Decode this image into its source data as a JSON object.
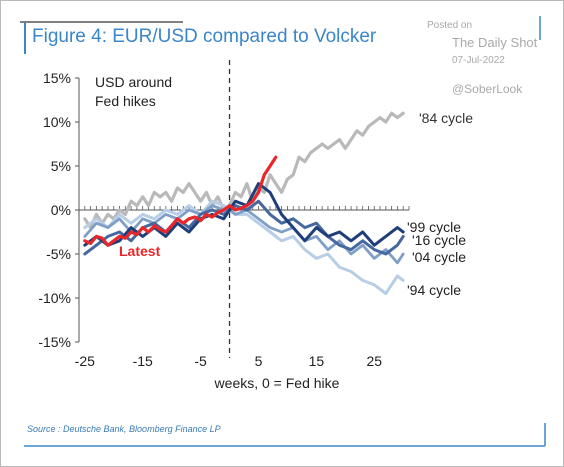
{
  "figure_title": "Figure 4: EUR/USD compared to Volcker",
  "watermark": {
    "posted_on": "Posted on",
    "site": "The Daily Shot",
    "date": "07-Jul-2022",
    "handle": "@SoberLook"
  },
  "source": "Source : Deutsche Bank, Bloomberg Finance LP",
  "colors": {
    "title": "#3a86c8",
    "accent_line": "#3a86c8",
    "84_cycle": "#b9b9b9",
    "99_cycle": "#1f3f7a",
    "16_cycle": "#46689e",
    "04_cycle": "#7f9fc8",
    "94_cycle": "#b8cde6",
    "latest": "#e8272a"
  },
  "chart_data": {
    "type": "line",
    "xlabel": "weeks, 0 = Fed hike",
    "ylabel": "",
    "xlim": [
      -26,
      31
    ],
    "ylim": [
      -15,
      15
    ],
    "x_ticks": [
      -25,
      -15,
      -5,
      5,
      15,
      25
    ],
    "y_ticks": [
      -15,
      -10,
      -5,
      0,
      5,
      10,
      15
    ],
    "y_tick_labels": [
      "-15%",
      "-10%",
      "-5%",
      "0%",
      "5%",
      "10%",
      "15%"
    ],
    "annotation": "USD around Fed hikes",
    "vline_x": 0,
    "legend": "inline labels",
    "grid": false,
    "series": [
      {
        "name": "'84 cycle",
        "color_key": "84_cycle",
        "x": [
          -25,
          -24,
          -23,
          -22,
          -21,
          -20,
          -19,
          -18,
          -17,
          -16,
          -15,
          -14,
          -13,
          -12,
          -11,
          -10,
          -9,
          -8,
          -7,
          -6,
          -5,
          -4,
          -3,
          -2,
          -1,
          0,
          1,
          2,
          3,
          4,
          5,
          6,
          7,
          8,
          9,
          10,
          11,
          12,
          13,
          14,
          15,
          16,
          17,
          18,
          19,
          20,
          21,
          22,
          23,
          24,
          25,
          26,
          27,
          28,
          29,
          30
        ],
        "y": [
          -1,
          -2,
          -0.5,
          -1.5,
          -0.5,
          -1,
          0,
          -0.5,
          1,
          0.5,
          1.5,
          0.5,
          2,
          1.5,
          2,
          1,
          2.5,
          2,
          3,
          2,
          1,
          2,
          0.5,
          1.5,
          0,
          0.5,
          2,
          1.5,
          3,
          1,
          2.5,
          2,
          4,
          3,
          2,
          3.5,
          4,
          6,
          5.5,
          6.5,
          7,
          7.5,
          7,
          7.5,
          8,
          7,
          8,
          9,
          8.5,
          9.5,
          10,
          10.5,
          10,
          11,
          10.5,
          11
        ]
      },
      {
        "name": "'99 cycle",
        "color_key": "99_cycle",
        "x": [
          -25,
          -23,
          -21,
          -19,
          -17,
          -15,
          -13,
          -11,
          -9,
          -7,
          -5,
          -3,
          -1,
          0,
          1,
          3,
          5,
          7,
          9,
          11,
          13,
          15,
          17,
          19,
          21,
          23,
          25,
          27,
          29,
          30
        ],
        "y": [
          -4,
          -3,
          -4,
          -3.5,
          -2,
          -3,
          -2,
          -3,
          -1.5,
          -2.5,
          -1,
          -0.5,
          -1,
          0,
          1,
          0.5,
          3,
          2,
          -0.5,
          -2,
          -3.5,
          -2,
          -3,
          -2.5,
          -3.5,
          -2.5,
          -4,
          -3,
          -2,
          -2.5
        ]
      },
      {
        "name": "'16 cycle",
        "color_key": "16_cycle",
        "x": [
          -25,
          -23,
          -21,
          -19,
          -17,
          -15,
          -13,
          -11,
          -9,
          -7,
          -5,
          -3,
          -1,
          0,
          1,
          3,
          5,
          7,
          9,
          11,
          13,
          15,
          17,
          19,
          21,
          23,
          25,
          27,
          29,
          30
        ],
        "y": [
          -5,
          -4,
          -3,
          -2.5,
          -3.5,
          -2,
          -1.5,
          -2.5,
          -1,
          -2,
          -0.5,
          0,
          -0.5,
          0,
          0.5,
          0,
          1,
          -0.5,
          -1.5,
          -1,
          -2,
          -1.5,
          -3,
          -4,
          -4.5,
          -3.5,
          -4.5,
          -5,
          -4,
          -3
        ]
      },
      {
        "name": "'04 cycle",
        "color_key": "04_cycle",
        "x": [
          -25,
          -23,
          -21,
          -19,
          -17,
          -15,
          -13,
          -11,
          -9,
          -7,
          -5,
          -3,
          -1,
          0,
          1,
          3,
          5,
          7,
          9,
          11,
          13,
          15,
          17,
          19,
          21,
          23,
          25,
          27,
          29,
          30
        ],
        "y": [
          -3,
          -1.5,
          -2,
          -1,
          -2.5,
          -1,
          -1.5,
          -0.5,
          -1,
          0,
          -0.5,
          0.5,
          0,
          0,
          -0.5,
          0,
          -1,
          -2,
          -2.5,
          -2,
          -3.5,
          -3,
          -4.5,
          -3.5,
          -5,
          -4,
          -5.5,
          -4.5,
          -6,
          -5
        ]
      },
      {
        "name": "'94 cycle",
        "color_key": "94_cycle",
        "x": [
          -25,
          -23,
          -21,
          -19,
          -17,
          -15,
          -13,
          -11,
          -9,
          -7,
          -5,
          -3,
          -1,
          0,
          1,
          3,
          5,
          7,
          9,
          11,
          13,
          15,
          17,
          19,
          21,
          23,
          25,
          27,
          29,
          30
        ],
        "y": [
          -2,
          -1,
          -2,
          -0.5,
          -1.5,
          -0.5,
          -1,
          0,
          -0.5,
          0.5,
          -0.5,
          1,
          0.5,
          0,
          -0.5,
          -0.5,
          -1.5,
          -2.5,
          -3.5,
          -3,
          -4.5,
          -5.5,
          -5,
          -6.5,
          -7,
          -8,
          -8.5,
          -9.5,
          -7.5,
          -8
        ]
      },
      {
        "name": "Latest",
        "color_key": "latest",
        "x": [
          -25,
          -24,
          -23,
          -22,
          -21,
          -20,
          -19,
          -18,
          -17,
          -16,
          -15,
          -14,
          -13,
          -12,
          -11,
          -10,
          -9,
          -8,
          -7,
          -6,
          -5,
          -4,
          -3,
          -2,
          -1,
          0,
          1,
          2,
          3,
          4,
          5,
          6,
          7,
          8
        ],
        "y": [
          -3.5,
          -3.8,
          -3,
          -3.2,
          -4,
          -3.5,
          -3,
          -3.2,
          -2.5,
          -2.8,
          -2,
          -2.5,
          -1.8,
          -2.2,
          -2.5,
          -1.8,
          -1,
          -1.5,
          -1,
          -0.8,
          -1.2,
          -0.5,
          -0.8,
          -0.3,
          0,
          0.5,
          0,
          0.2,
          0.5,
          1,
          2,
          4,
          5,
          6
        ]
      }
    ]
  }
}
